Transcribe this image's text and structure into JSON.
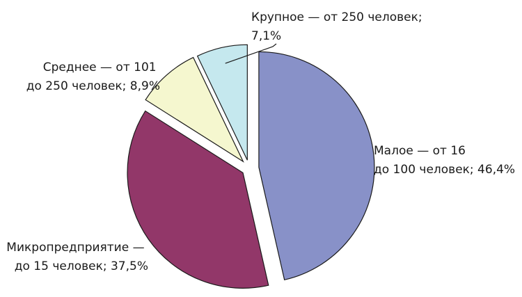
{
  "chart_data": {
    "type": "pie",
    "start_angle_deg": 0,
    "direction": "clockwise",
    "exploded": true,
    "slices": [
      {
        "label_lines": [
          "Малое — от 16",
          "до 100 человек; 46,4%"
        ],
        "value": 46.4,
        "color": "#8891c8"
      },
      {
        "label_lines": [
          "Микропредприятие —",
          "до 15 человек; 37,5%"
        ],
        "value": 37.5,
        "color": "#923769"
      },
      {
        "label_lines": [
          "Среднее — от 101",
          "до 250 человек; 8,9%"
        ],
        "value": 8.9,
        "color": "#f5f7cf"
      },
      {
        "label_lines": [
          "Крупное — от 250 человек;",
          "7,1%"
        ],
        "value": 7.1,
        "color": "#c5e8ee"
      }
    ]
  }
}
